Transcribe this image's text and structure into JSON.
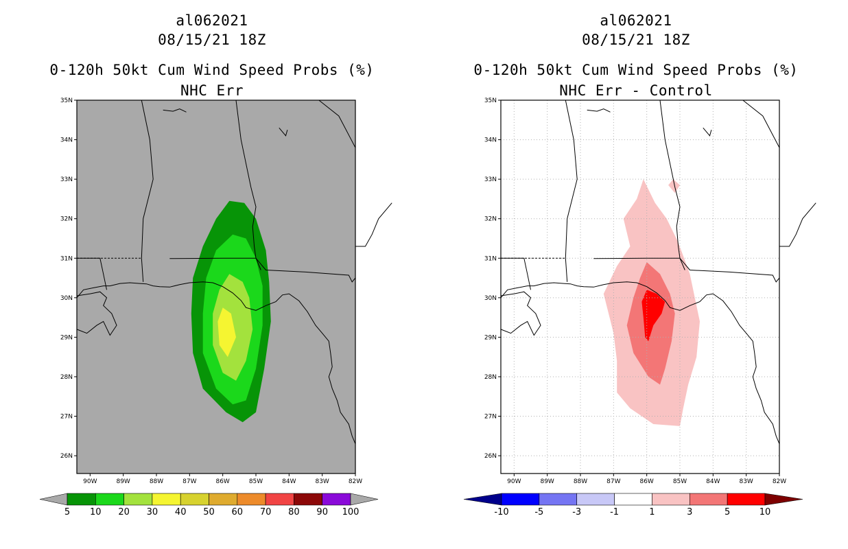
{
  "panels": [
    {
      "storm_id": "al062021",
      "datetime": "08/15/21 18Z",
      "product": "0-120h 50kt Cum Wind Speed Probs (%)",
      "subtitle": "NHC Err",
      "background": "#a9a9a9",
      "colorbar": {
        "labels": [
          "5",
          "10",
          "20",
          "30",
          "40",
          "50",
          "60",
          "70",
          "80",
          "90",
          "100"
        ],
        "colors": [
          "#079407",
          "#1bd81b",
          "#a3e23d",
          "#f5f531",
          "#d7d22f",
          "#dfab2f",
          "#ed8b2b",
          "#f14444",
          "#8c0808",
          "#8a0ad9"
        ],
        "end_colors": [
          "#a9a9a9",
          "#a9a9a9"
        ]
      }
    },
    {
      "storm_id": "al062021",
      "datetime": "08/15/21 18Z",
      "product": "0-120h 50kt Cum Wind Speed Probs (%)",
      "subtitle": "NHC Err - Control",
      "background": "#ffffff",
      "colorbar": {
        "labels": [
          "-10",
          "-5",
          "-3",
          "-1",
          "1",
          "3",
          "5",
          "10"
        ],
        "colors": [
          "#0000ff",
          "#7575f3",
          "#c8c8f7",
          "#ffffff",
          "#f9c3c3",
          "#f37676",
          "#ff0000"
        ],
        "end_colors": [
          "#00008b",
          "#7e0000"
        ]
      }
    }
  ],
  "axes": {
    "lat_labels": [
      "35N",
      "34N",
      "33N",
      "32N",
      "31N",
      "30N",
      "29N",
      "28N",
      "27N",
      "26N"
    ],
    "lon_labels": [
      "90W",
      "89W",
      "88W",
      "87W",
      "86W",
      "85W",
      "84W",
      "83W",
      "82W"
    ]
  },
  "legend_colors": {
    "prob_fill": [
      "#079407",
      "#1bd81b",
      "#a3e23d",
      "#f5f531"
    ],
    "diff_fill": [
      "#f9c3c3",
      "#f37676",
      "#ff0000",
      "#cc0000"
    ]
  }
}
